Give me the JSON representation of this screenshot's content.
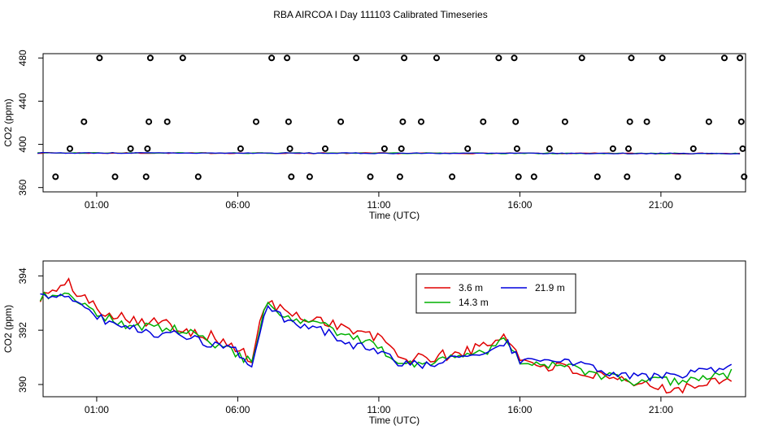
{
  "title": "RBA AIRCOA I  Day 111103  Calibrated Timeseries",
  "chart_data": [
    {
      "type": "scatter",
      "xlabel": "Time (UTC)",
      "ylabel": "CO2 (ppm)",
      "xlim": [
        -0.9,
        24.0
      ],
      "ylim": [
        356,
        484
      ],
      "xticks": [
        1,
        6,
        11,
        16,
        21
      ],
      "xtick_labels": [
        "01:00",
        "06:00",
        "11:00",
        "16:00",
        "21:00"
      ],
      "yticks": [
        360,
        400,
        440,
        480
      ],
      "ytick_labels": [
        "360",
        "400",
        "440",
        "480"
      ],
      "grid": false,
      "series": [
        {
          "name": "3.6 m",
          "color": "#e00000"
        },
        {
          "name": "14.3 m",
          "color": "#00b000"
        },
        {
          "name": "21.9 m",
          "color": "#0000dd"
        }
      ],
      "line_value_approx": 392,
      "marker_points": [
        [
          -0.46,
          370
        ],
        [
          0.05,
          396
        ],
        [
          0.55,
          421
        ],
        [
          1.1,
          480
        ],
        [
          1.65,
          370
        ],
        [
          2.2,
          396
        ],
        [
          2.75,
          370
        ],
        [
          2.8,
          396
        ],
        [
          2.85,
          421
        ],
        [
          2.9,
          480
        ],
        [
          3.5,
          421
        ],
        [
          4.05,
          480
        ],
        [
          4.6,
          370
        ],
        [
          6.1,
          396
        ],
        [
          6.65,
          421
        ],
        [
          7.2,
          480
        ],
        [
          7.75,
          480
        ],
        [
          7.8,
          421
        ],
        [
          7.85,
          396
        ],
        [
          7.9,
          370
        ],
        [
          8.55,
          370
        ],
        [
          9.1,
          396
        ],
        [
          9.65,
          421
        ],
        [
          10.2,
          480
        ],
        [
          10.7,
          370
        ],
        [
          11.2,
          396
        ],
        [
          11.75,
          370
        ],
        [
          11.8,
          396
        ],
        [
          11.85,
          421
        ],
        [
          11.9,
          480
        ],
        [
          12.5,
          421
        ],
        [
          13.05,
          480
        ],
        [
          13.6,
          370
        ],
        [
          14.15,
          396
        ],
        [
          14.7,
          421
        ],
        [
          15.25,
          480
        ],
        [
          15.8,
          480
        ],
        [
          15.85,
          421
        ],
        [
          15.9,
          396
        ],
        [
          15.95,
          370
        ],
        [
          16.5,
          370
        ],
        [
          17.05,
          396
        ],
        [
          17.6,
          421
        ],
        [
          18.2,
          480
        ],
        [
          18.75,
          370
        ],
        [
          19.3,
          396
        ],
        [
          19.8,
          370
        ],
        [
          19.85,
          396
        ],
        [
          19.9,
          421
        ],
        [
          19.95,
          480
        ],
        [
          20.5,
          421
        ],
        [
          21.05,
          480
        ],
        [
          21.6,
          370
        ],
        [
          22.15,
          396
        ],
        [
          22.7,
          421
        ],
        [
          23.25,
          480
        ],
        [
          23.8,
          480
        ],
        [
          23.85,
          421
        ],
        [
          23.9,
          396
        ],
        [
          23.95,
          370
        ]
      ]
    },
    {
      "type": "line",
      "xlabel": "Time (UTC)",
      "ylabel": "CO2 (ppm)",
      "xlim": [
        -0.9,
        24.0
      ],
      "ylim": [
        389.55,
        394.55
      ],
      "xticks": [
        1,
        6,
        11,
        16,
        21
      ],
      "xtick_labels": [
        "01:00",
        "06:00",
        "11:00",
        "16:00",
        "21:00"
      ],
      "yticks": [
        390,
        392,
        394
      ],
      "ytick_labels": [
        "390",
        "392",
        "394"
      ],
      "grid": false,
      "legend": "top-center",
      "legend_entries": [
        "3.6 m",
        "14.3 m",
        "21.9 m"
      ],
      "x": [
        -1.0,
        0.0,
        1.0,
        2.0,
        3.0,
        4.0,
        5.0,
        6.0,
        6.5,
        7.0,
        8.0,
        9.0,
        10.0,
        11.0,
        11.5,
        12.0,
        13.0,
        14.0,
        15.0,
        15.5,
        16.0,
        16.5,
        17.0,
        18.0,
        19.0,
        20.0,
        21.0,
        22.0,
        23.0,
        23.5
      ],
      "series": [
        {
          "name": "3.6 m",
          "color": "#e00000",
          "values": [
            393.2,
            393.7,
            392.8,
            392.5,
            392.3,
            392.1,
            391.8,
            391.3,
            390.9,
            393.1,
            392.5,
            392.4,
            392.0,
            391.7,
            391.3,
            390.9,
            391.0,
            391.2,
            391.5,
            391.9,
            390.9,
            390.8,
            390.7,
            390.5,
            390.2,
            390.0,
            389.9,
            389.9,
            390.2,
            390.3
          ]
        },
        {
          "name": "14.3 m",
          "color": "#00b000",
          "values": [
            393.2,
            393.4,
            392.6,
            392.2,
            392.1,
            392.0,
            391.6,
            391.1,
            390.8,
            392.9,
            392.3,
            392.2,
            391.7,
            391.4,
            391.0,
            390.7,
            390.9,
            391.1,
            391.3,
            391.8,
            390.9,
            390.8,
            390.7,
            390.6,
            390.3,
            390.1,
            390.1,
            390.2,
            390.3,
            390.4
          ]
        },
        {
          "name": "21.9 m",
          "color": "#0000dd",
          "values": [
            393.2,
            393.3,
            392.5,
            392.1,
            391.9,
            391.8,
            391.5,
            391.2,
            390.6,
            392.8,
            392.2,
            392.0,
            391.5,
            391.2,
            390.9,
            390.7,
            390.8,
            391.1,
            391.2,
            391.6,
            390.9,
            390.8,
            390.9,
            390.8,
            390.5,
            390.3,
            390.3,
            390.4,
            390.5,
            390.7
          ]
        }
      ]
    }
  ]
}
